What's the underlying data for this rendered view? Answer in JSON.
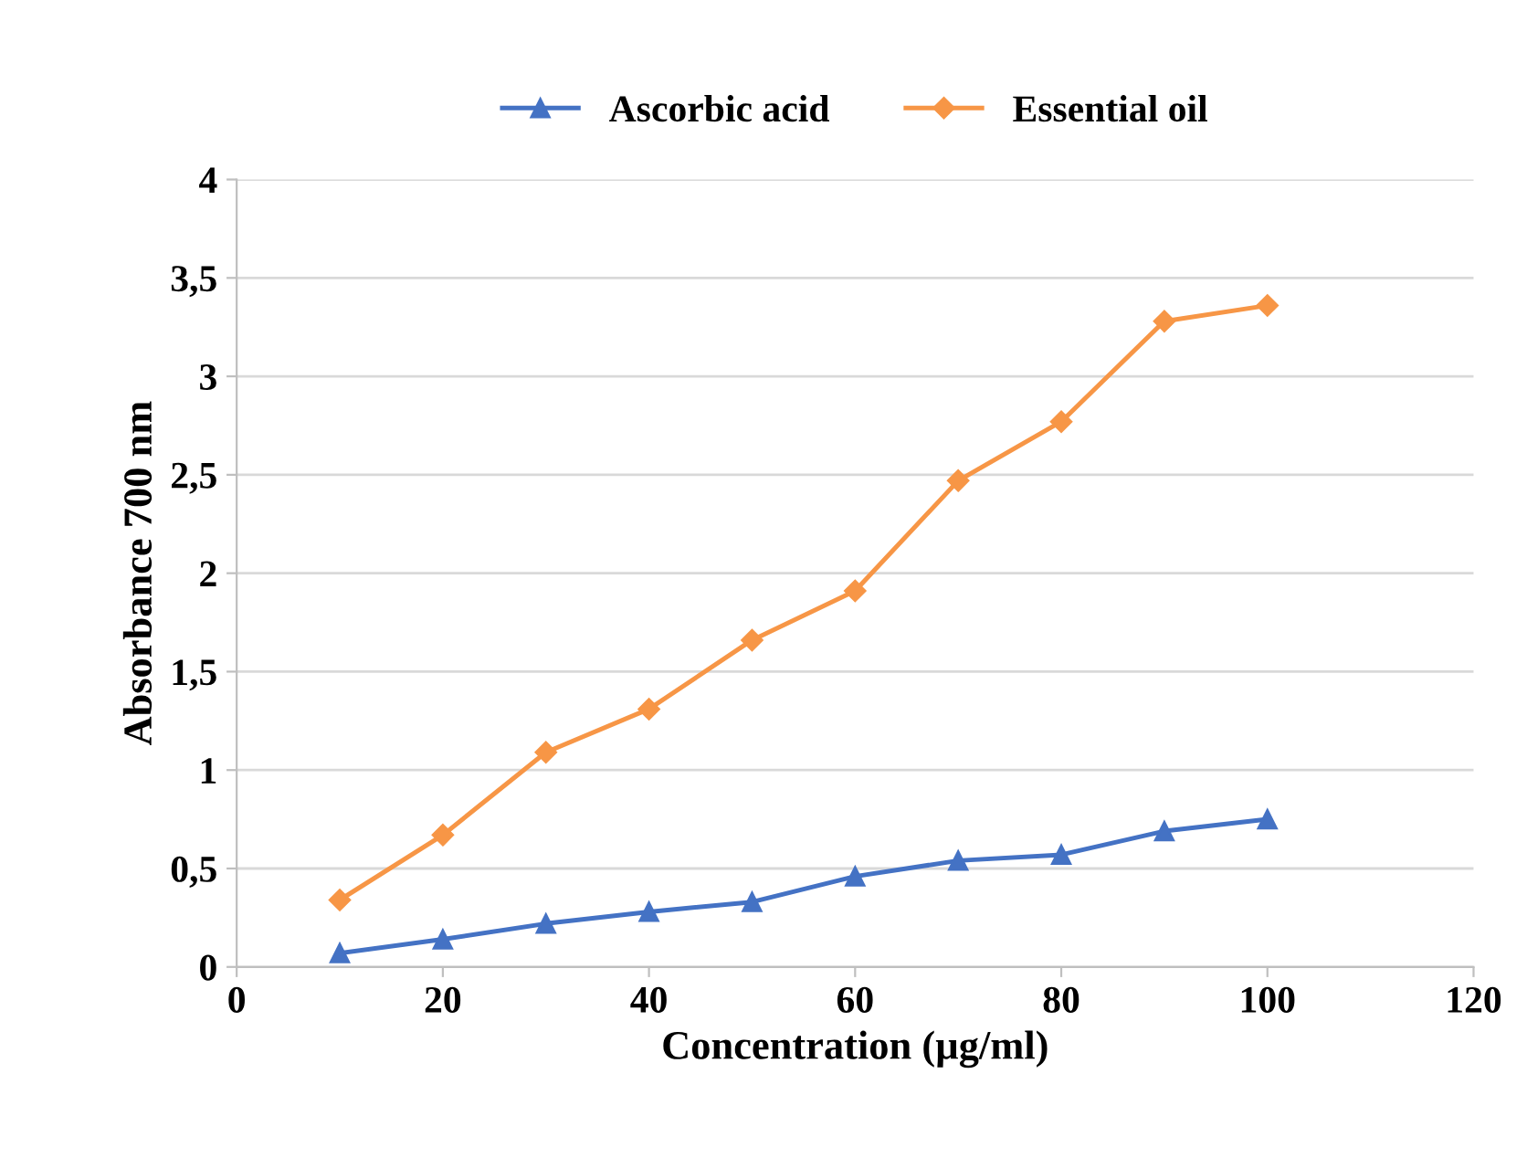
{
  "chart_data": {
    "type": "line",
    "xlabel": "Concentration (µg/ml)",
    "ylabel": "Absorbance 700 nm",
    "x": [
      10,
      20,
      30,
      40,
      50,
      60,
      70,
      80,
      90,
      100
    ],
    "series": [
      {
        "name": "Ascorbic acid",
        "color": "#4472c4",
        "marker": "triangle",
        "values": [
          0.07,
          0.14,
          0.22,
          0.28,
          0.33,
          0.46,
          0.54,
          0.57,
          0.69,
          0.75
        ]
      },
      {
        "name": "Essential oil",
        "color": "#f79646",
        "marker": "diamond",
        "values": [
          0.34,
          0.67,
          1.09,
          1.31,
          1.66,
          1.91,
          2.47,
          2.77,
          3.28,
          3.36
        ]
      }
    ],
    "xlim": [
      0,
      120
    ],
    "xticks": [
      0,
      20,
      40,
      60,
      80,
      100,
      120
    ],
    "ylim": [
      0,
      4
    ],
    "yticks": [
      0,
      {
        "value": 0.5,
        "label": "0,5"
      },
      1,
      {
        "value": 1.5,
        "label": "1,5"
      },
      2,
      {
        "value": 2.5,
        "label": "2,5"
      },
      3,
      {
        "value": 3.5,
        "label": "3,5"
      },
      4
    ],
    "grid": "y",
    "legend": "top",
    "line_style": "solid"
  }
}
